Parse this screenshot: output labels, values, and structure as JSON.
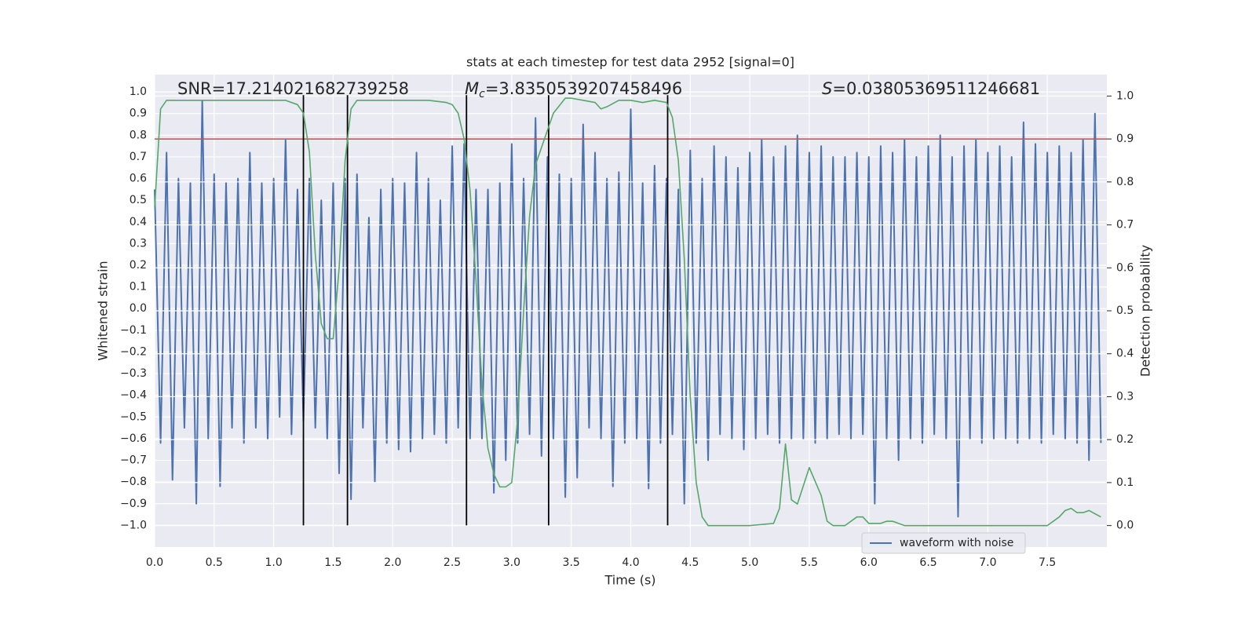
{
  "chart_data": {
    "type": "line",
    "title": "stats at each timestep for test data 2952 [signal=0]",
    "xlabel": "Time (s)",
    "ylabel": "Whitened strain",
    "y2label": "Detection probability",
    "annotations": [
      {
        "text": "SNR=17.214021682739258"
      },
      {
        "italic": "M",
        "sub": "c",
        "text": "=3.8350539207458496"
      },
      {
        "italic": "S",
        "text": "=0.03805369511246681"
      }
    ],
    "xlim": [
      0,
      8.0
    ],
    "ylim": [
      -1.1,
      1.08
    ],
    "y2lim": [
      -0.05,
      1.05
    ],
    "xticks": [
      {
        "value": 0,
        "label": "0.0"
      },
      {
        "value": 0.5,
        "label": "0.5"
      },
      {
        "value": 1,
        "label": "1.0"
      },
      {
        "value": 1.5,
        "label": "1.5"
      },
      {
        "value": 2,
        "label": "2.0"
      },
      {
        "value": 2.5,
        "label": "2.5"
      },
      {
        "value": 3,
        "label": "3.0"
      },
      {
        "value": 3.5,
        "label": "3.5"
      },
      {
        "value": 4,
        "label": "4.0"
      },
      {
        "value": 4.5,
        "label": "4.5"
      },
      {
        "value": 5,
        "label": "5.0"
      },
      {
        "value": 5.5,
        "label": "5.5"
      },
      {
        "value": 6,
        "label": "6.0"
      },
      {
        "value": 6.5,
        "label": "6.5"
      },
      {
        "value": 7,
        "label": "7.0"
      },
      {
        "value": 7.5,
        "label": "7.5"
      }
    ],
    "yticks": [
      {
        "value": -1,
        "label": "−1.0"
      },
      {
        "value": -0.9,
        "label": "−0.9"
      },
      {
        "value": -0.8,
        "label": "−0.8"
      },
      {
        "value": -0.7,
        "label": "−0.7"
      },
      {
        "value": -0.6,
        "label": "−0.6"
      },
      {
        "value": -0.5,
        "label": "−0.5"
      },
      {
        "value": -0.4,
        "label": "−0.4"
      },
      {
        "value": -0.3,
        "label": "−0.3"
      },
      {
        "value": -0.2,
        "label": "−0.2"
      },
      {
        "value": -0.1,
        "label": "−0.1"
      },
      {
        "value": 0,
        "label": "0.0"
      },
      {
        "value": 0.1,
        "label": "0.1"
      },
      {
        "value": 0.2,
        "label": "0.2"
      },
      {
        "value": 0.3,
        "label": "0.3"
      },
      {
        "value": 0.4,
        "label": "0.4"
      },
      {
        "value": 0.5,
        "label": "0.5"
      },
      {
        "value": 0.6,
        "label": "0.6"
      },
      {
        "value": 0.7,
        "label": "0.7"
      },
      {
        "value": 0.8,
        "label": "0.8"
      },
      {
        "value": 0.9,
        "label": "0.9"
      },
      {
        "value": 1,
        "label": "1.0"
      }
    ],
    "y2ticks": [
      {
        "value": 0,
        "label": "0.0"
      },
      {
        "value": 0.1,
        "label": "0.1"
      },
      {
        "value": 0.2,
        "label": "0.2"
      },
      {
        "value": 0.3,
        "label": "0.3"
      },
      {
        "value": 0.4,
        "label": "0.4"
      },
      {
        "value": 0.5,
        "label": "0.5"
      },
      {
        "value": 0.6,
        "label": "0.6"
      },
      {
        "value": 0.7,
        "label": "0.7"
      },
      {
        "value": 0.8,
        "label": "0.8"
      },
      {
        "value": 0.9,
        "label": "0.9"
      },
      {
        "value": 1,
        "label": "1.0"
      }
    ],
    "grid": true,
    "legend": "best",
    "series": [
      {
        "name": "waveform with noise",
        "color": "#4c72b0",
        "axis": "y",
        "x": [
          0,
          0.05,
          0.1,
          0.15,
          0.2,
          0.25,
          0.3,
          0.35,
          0.4,
          0.45,
          0.5,
          0.55,
          0.6,
          0.65,
          0.7,
          0.75,
          0.8,
          0.85,
          0.9,
          0.95,
          1,
          1.05,
          1.1,
          1.15,
          1.2,
          1.25,
          1.3,
          1.35,
          1.4,
          1.45,
          1.5,
          1.55,
          1.6,
          1.65,
          1.7,
          1.75,
          1.8,
          1.85,
          1.9,
          1.95,
          2,
          2.05,
          2.1,
          2.15,
          2.2,
          2.25,
          2.3,
          2.35,
          2.4,
          2.45,
          2.5,
          2.55,
          2.6,
          2.65,
          2.7,
          2.75,
          2.8,
          2.85,
          2.9,
          2.95,
          3,
          3.05,
          3.1,
          3.15,
          3.2,
          3.25,
          3.3,
          3.35,
          3.4,
          3.45,
          3.5,
          3.55,
          3.6,
          3.65,
          3.7,
          3.75,
          3.8,
          3.85,
          3.9,
          3.95,
          4,
          4.05,
          4.1,
          4.15,
          4.2,
          4.25,
          4.3,
          4.35,
          4.4,
          4.45,
          4.5,
          4.55,
          4.6,
          4.65,
          4.7,
          4.75,
          4.8,
          4.85,
          4.9,
          4.95,
          5,
          5.05,
          5.1,
          5.15,
          5.2,
          5.25,
          5.3,
          5.35,
          5.4,
          5.45,
          5.5,
          5.55,
          5.6,
          5.65,
          5.7,
          5.75,
          5.8,
          5.85,
          5.9,
          5.95,
          6,
          6.05,
          6.1,
          6.15,
          6.2,
          6.25,
          6.3,
          6.35,
          6.4,
          6.45,
          6.5,
          6.55,
          6.6,
          6.65,
          6.7,
          6.75,
          6.8,
          6.85,
          6.9,
          6.95,
          7,
          7.05,
          7.1,
          7.15,
          7.2,
          7.25,
          7.3,
          7.35,
          7.4,
          7.45,
          7.5,
          7.55,
          7.6,
          7.65,
          7.7,
          7.75,
          7.8,
          7.85,
          7.9,
          7.95
        ],
        "values": [
          0.55,
          -0.62,
          0.72,
          -0.79,
          0.6,
          -0.55,
          0.58,
          -0.9,
          0.96,
          -0.6,
          0.62,
          -0.82,
          0.58,
          -0.55,
          0.6,
          -0.62,
          0.72,
          -0.55,
          0.58,
          -0.6,
          0.6,
          -0.5,
          0.78,
          -0.58,
          0.55,
          -0.52,
          0.6,
          -0.55,
          0.5,
          -0.6,
          0.58,
          -0.76,
          0.6,
          -0.88,
          0.62,
          -0.55,
          0.42,
          -0.8,
          0.55,
          -0.62,
          0.6,
          -0.65,
          0.58,
          -0.66,
          0.72,
          -0.6,
          0.6,
          -0.58,
          0.5,
          -0.62,
          0.75,
          -0.55,
          0.76,
          -0.6,
          0.55,
          -0.6,
          0.55,
          -0.85,
          0.58,
          -0.7,
          0.76,
          -0.62,
          0.6,
          -0.58,
          0.88,
          -0.68,
          0.7,
          -0.6,
          0.62,
          -0.87,
          0.6,
          -0.78,
          0.85,
          -0.55,
          0.72,
          -0.6,
          0.6,
          -0.82,
          0.63,
          -0.62,
          0.92,
          -0.6,
          0.58,
          -0.83,
          0.66,
          -0.62,
          0.6,
          -0.58,
          0.55,
          -0.9,
          0.73,
          -0.62,
          0.6,
          -0.7,
          0.75,
          -0.58,
          0.7,
          -0.6,
          0.65,
          -0.65,
          0.72,
          -0.6,
          0.78,
          -0.58,
          0.7,
          -0.62,
          0.75,
          -0.6,
          0.8,
          -0.6,
          0.72,
          -0.62,
          0.75,
          -0.6,
          0.7,
          -0.58,
          0.7,
          -0.6,
          0.72,
          -0.58,
          0.7,
          -0.9,
          0.75,
          -0.6,
          0.72,
          -0.7,
          0.78,
          -0.6,
          0.7,
          -0.62,
          0.75,
          -0.58,
          0.8,
          -0.6,
          0.7,
          -0.96,
          0.75,
          -0.6,
          0.78,
          -0.62,
          0.72,
          -0.6,
          0.75,
          -0.6,
          0.7,
          -0.62,
          0.86,
          -0.6,
          0.76,
          -0.62,
          0.72,
          -0.58,
          0.75,
          -0.6,
          0.72,
          -0.62,
          0.78,
          -0.7,
          0.9,
          -0.62
        ]
      },
      {
        "color": "#55a868",
        "axis": "y2",
        "x": [
          0,
          0.05,
          0.1,
          0.3,
          0.5,
          0.7,
          0.9,
          1.1,
          1.2,
          1.25,
          1.3,
          1.35,
          1.4,
          1.45,
          1.5,
          1.55,
          1.6,
          1.65,
          1.7,
          1.9,
          2.1,
          2.3,
          2.45,
          2.5,
          2.55,
          2.6,
          2.65,
          2.7,
          2.75,
          2.8,
          2.85,
          2.9,
          2.95,
          3,
          3.05,
          3.1,
          3.15,
          3.2,
          3.3,
          3.35,
          3.45,
          3.5,
          3.6,
          3.7,
          3.75,
          3.8,
          3.9,
          4,
          4.1,
          4.2,
          4.3,
          4.35,
          4.4,
          4.45,
          4.5,
          4.55,
          4.6,
          4.65,
          5,
          5.2,
          5.25,
          5.3,
          5.35,
          5.4,
          5.5,
          5.6,
          5.65,
          5.7,
          5.8,
          5.9,
          5.95,
          6,
          6.1,
          6.15,
          6.2,
          6.3,
          6.5,
          6.7,
          7,
          7.5,
          7.6,
          7.65,
          7.7,
          7.75,
          7.8,
          7.85,
          7.95
        ],
        "values": [
          0.74,
          0.97,
          0.99,
          0.99,
          0.99,
          0.99,
          0.99,
          0.99,
          0.98,
          0.96,
          0.87,
          0.63,
          0.47,
          0.435,
          0.435,
          0.6,
          0.85,
          0.97,
          0.99,
          0.99,
          0.99,
          0.99,
          0.985,
          0.98,
          0.96,
          0.9,
          0.78,
          0.57,
          0.33,
          0.18,
          0.12,
          0.09,
          0.09,
          0.1,
          0.25,
          0.5,
          0.72,
          0.84,
          0.92,
          0.96,
          0.995,
          0.995,
          0.99,
          0.985,
          0.97,
          0.975,
          0.99,
          0.99,
          0.985,
          0.99,
          0.985,
          0.95,
          0.85,
          0.62,
          0.3,
          0.1,
          0.02,
          0,
          0,
          0.005,
          0.04,
          0.19,
          0.06,
          0.05,
          0.135,
          0.07,
          0.01,
          0,
          0,
          0.02,
          0.02,
          0.005,
          0.005,
          0.01,
          0.01,
          0,
          0,
          0,
          0,
          0,
          0.02,
          0.035,
          0.04,
          0.03,
          0.03,
          0.035,
          0.02
        ]
      }
    ],
    "hlines": [
      {
        "value": 0.9,
        "axis": "y2",
        "color": "#c44e52"
      }
    ],
    "vlines": {
      "x": [
        1.25,
        1.62,
        2.62,
        3.31,
        4.31
      ],
      "ymin": -1.0,
      "ymax": 0.985,
      "color": "#000000"
    }
  }
}
